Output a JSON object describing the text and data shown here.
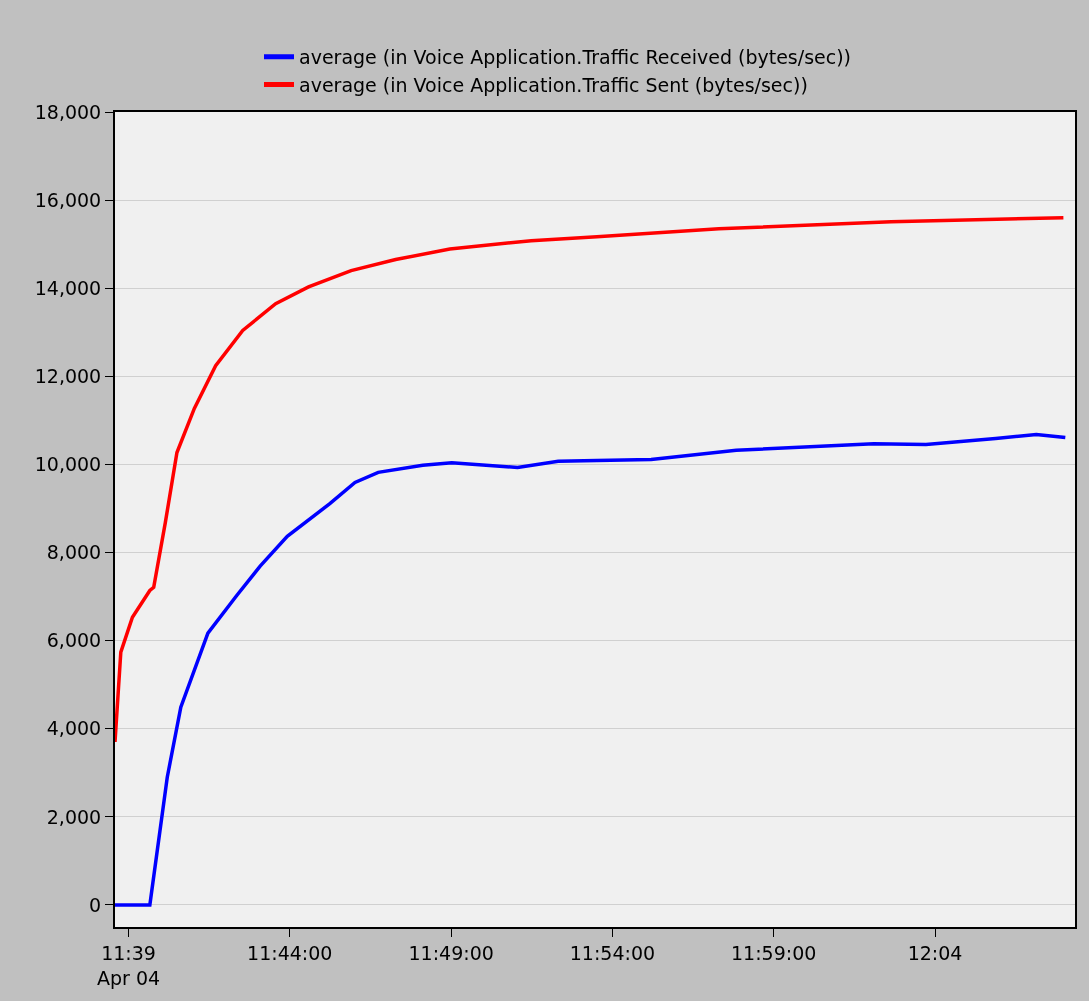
{
  "chart_data": {
    "type": "line",
    "x": [
      11.643,
      11.646,
      11.652,
      11.661,
      11.663,
      11.669,
      11.675,
      11.684,
      11.695,
      11.709,
      11.726,
      11.743,
      11.765,
      11.788,
      11.816,
      11.858,
      11.892,
      11.955,
      12.044,
      12.133
    ],
    "series": [
      {
        "name": "average (in Voice Application.Traffic Received (bytes/sec))",
        "color": "#0000ff",
        "x": [
          11.643,
          11.661,
          11.67,
          11.677,
          11.691,
          11.706,
          11.718,
          11.732,
          11.754,
          11.767,
          11.779,
          11.802,
          11.817,
          11.851,
          11.872,
          11.892,
          11.92,
          11.964,
          12.035,
          12.062,
          12.098,
          12.119,
          12.134
        ],
        "values": [
          0,
          0,
          2900,
          4490,
          6170,
          7030,
          7690,
          8370,
          9110,
          9590,
          9820,
          9980,
          10040,
          9930,
          10070,
          10090,
          10110,
          10320,
          10470,
          10450,
          10590,
          10680,
          10610
        ]
      },
      {
        "name": "average (in Voice Application.Traffic Sent (bytes/sec))",
        "color": "#ff0000",
        "values": [
          3700,
          5740,
          6530,
          7140,
          7210,
          8680,
          10270,
          11270,
          12240,
          13040,
          13650,
          14030,
          14400,
          14650,
          14890,
          15080,
          15170,
          15350,
          15510,
          15600
        ]
      }
    ],
    "xlim": [
      11.643,
      12.139
    ],
    "xticks": [
      {
        "value": 11.65,
        "label": "11:39\nApr 04"
      },
      {
        "value": 11.7333,
        "label": "11:44:00"
      },
      {
        "value": 11.8167,
        "label": "11:49:00"
      },
      {
        "value": 11.9,
        "label": "11:54:00"
      },
      {
        "value": 11.9833,
        "label": "11:59:00"
      },
      {
        "value": 12.0667,
        "label": "12:04"
      }
    ],
    "ylim": [
      -500,
      18000
    ],
    "yticks": [
      {
        "value": 0,
        "label": "0"
      },
      {
        "value": 2000,
        "label": "2,000"
      },
      {
        "value": 4000,
        "label": "4,000"
      },
      {
        "value": 6000,
        "label": "6,000"
      },
      {
        "value": 8000,
        "label": "8,000"
      },
      {
        "value": 10000,
        "label": "10,000"
      },
      {
        "value": 12000,
        "label": "12,000"
      },
      {
        "value": 14000,
        "label": "14,000"
      },
      {
        "value": 16000,
        "label": "16,000"
      },
      {
        "value": 18000,
        "label": "18,000"
      }
    ],
    "grid": "y",
    "legend": "top",
    "marker": "none",
    "line_style": "solid"
  }
}
